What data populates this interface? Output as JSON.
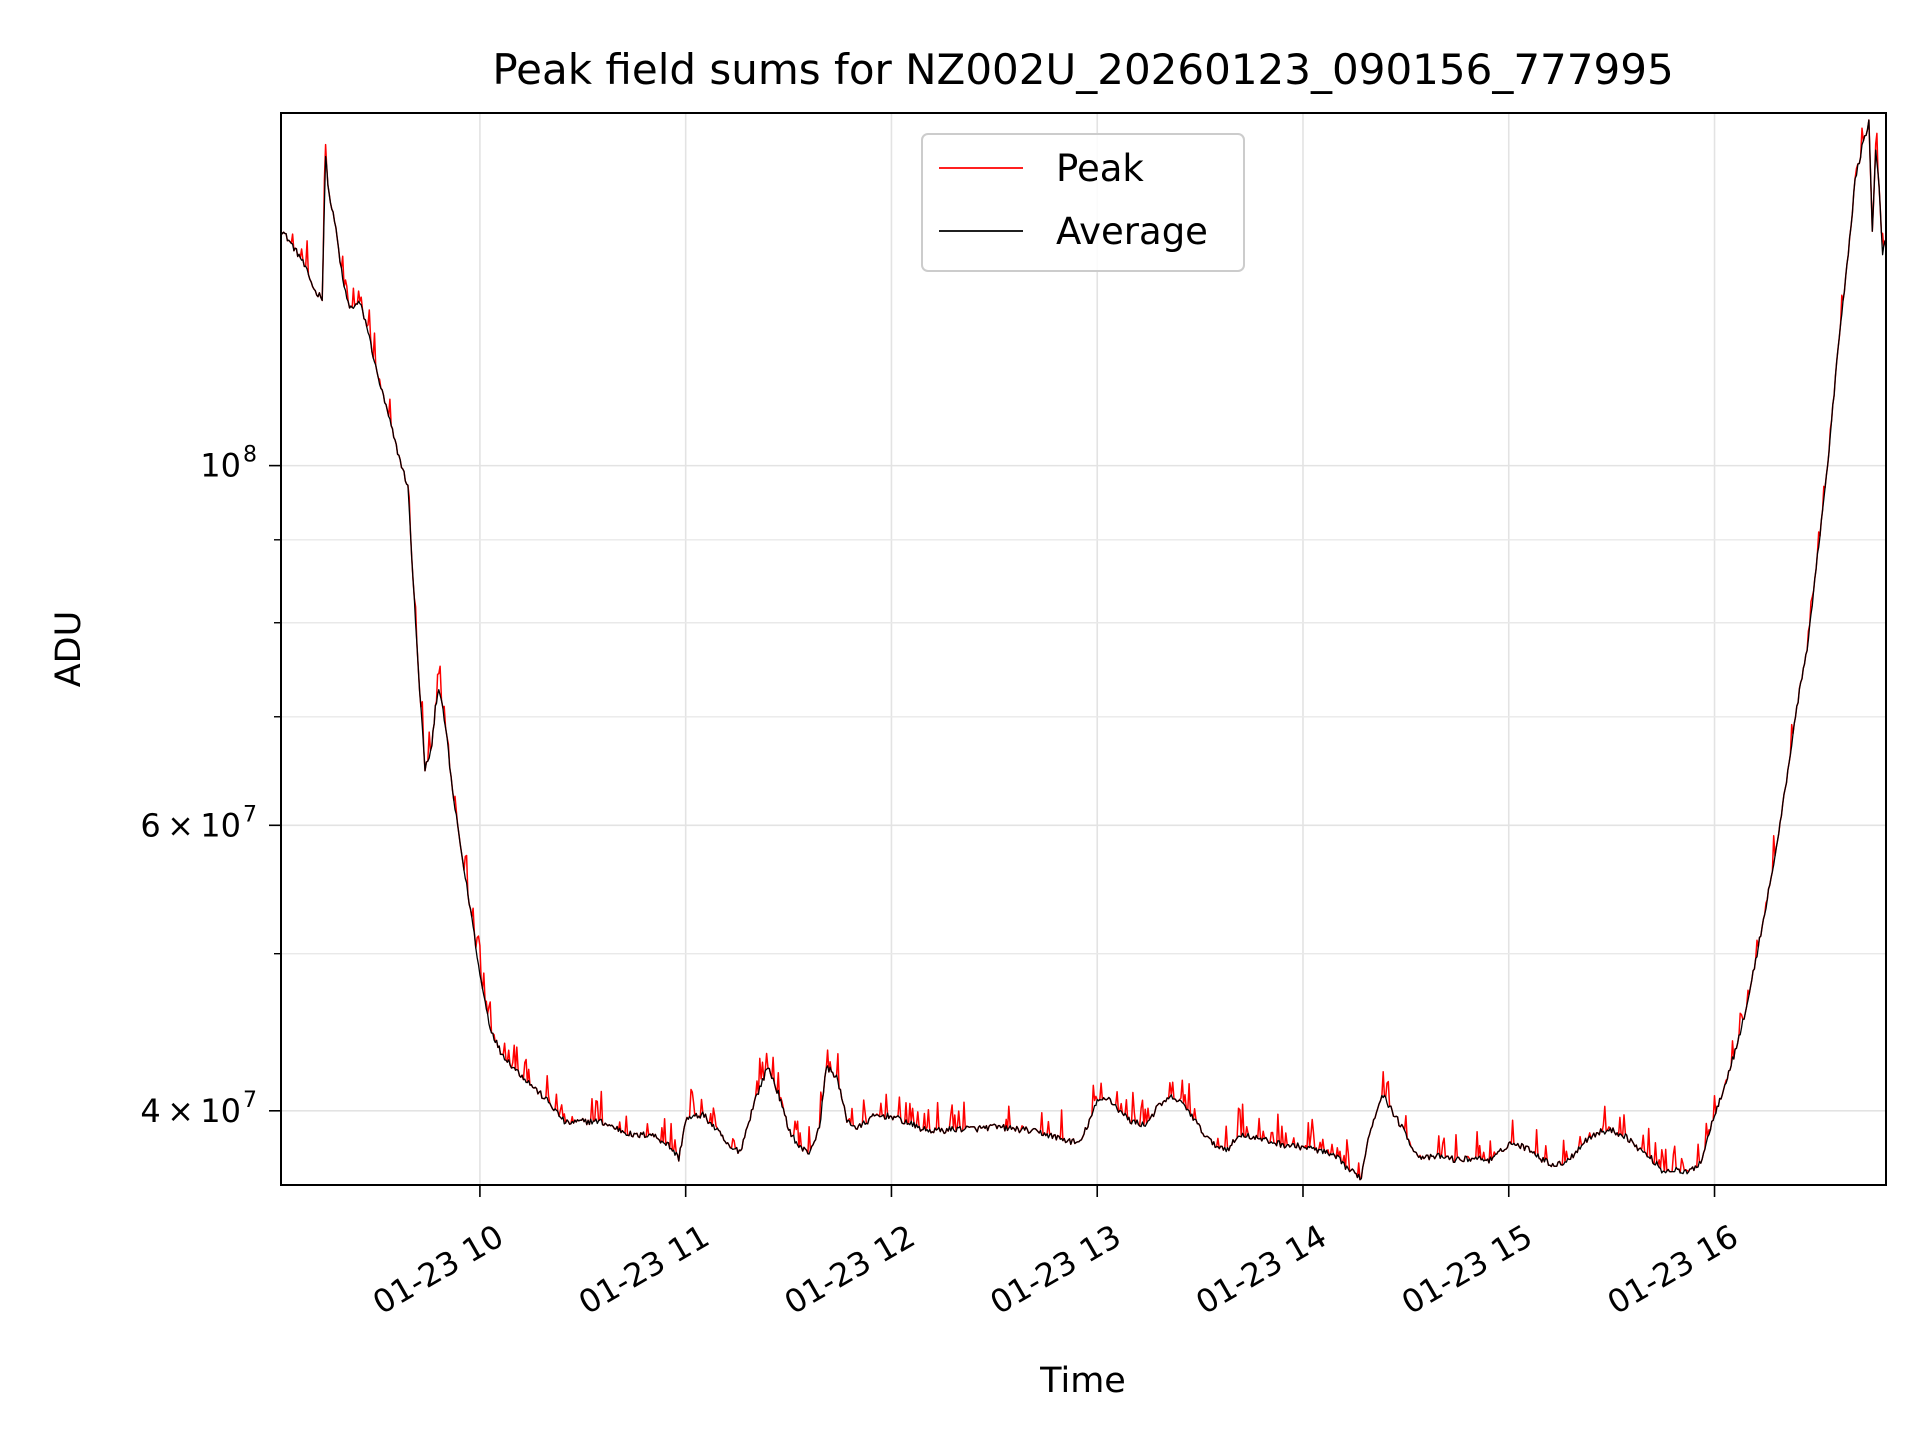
{
  "chart_data": {
    "type": "line",
    "title": "Peak field sums for NZ002U_20260123_090156_777995",
    "xlabel": "Time",
    "ylabel": "ADU",
    "y_scale": "log",
    "grid": true,
    "legend_position": "upper center",
    "x_range": [
      "01-23 09:02",
      "01-23 16:50"
    ],
    "y_range": [
      36000000,
      165000000
    ],
    "x_tick_labels": [
      "01-23 10",
      "01-23 11",
      "01-23 12",
      "01-23 13",
      "01-23 14",
      "01-23 15",
      "01-23 16"
    ],
    "y_tick_labels": [
      {
        "value": 100000000,
        "base": "10",
        "exp": "8"
      },
      {
        "value": 60000000,
        "base": "6 × 10",
        "exp": "7"
      },
      {
        "value": 40000000,
        "base": "4 × 10",
        "exp": "7"
      }
    ],
    "y_minor_ticks": [
      50000000,
      70000000,
      80000000,
      90000000
    ],
    "series": [
      {
        "name": "Peak",
        "color": "#ff0000",
        "spiky": true,
        "points": [
          [
            "09:02",
            140000000
          ],
          [
            "09:05",
            137000000
          ],
          [
            "09:08",
            134000000
          ],
          [
            "09:10",
            131000000
          ],
          [
            "09:12",
            128000000
          ],
          [
            "09:14",
            127000000
          ],
          [
            "09:15",
            155000000
          ],
          [
            "09:16",
            147000000
          ],
          [
            "09:18",
            140000000
          ],
          [
            "09:20",
            130000000
          ],
          [
            "09:22",
            125000000
          ],
          [
            "09:25",
            126000000
          ],
          [
            "09:27",
            122000000
          ],
          [
            "09:30",
            114000000
          ],
          [
            "09:33",
            108000000
          ],
          [
            "09:36",
            102000000
          ],
          [
            "09:39",
            97000000
          ],
          [
            "09:42",
            75000000
          ],
          [
            "09:44",
            65000000
          ],
          [
            "09:46",
            67000000
          ],
          [
            "09:47",
            71000000
          ],
          [
            "09:48",
            73000000
          ],
          [
            "09:50",
            69000000
          ],
          [
            "09:52",
            63000000
          ],
          [
            "09:55",
            57000000
          ],
          [
            "09:58",
            52000000
          ],
          [
            "10:00",
            48500000
          ],
          [
            "10:03",
            45000000
          ],
          [
            "10:06",
            43500000
          ],
          [
            "10:10",
            42500000
          ],
          [
            "10:15",
            41500000
          ],
          [
            "10:20",
            40500000
          ],
          [
            "10:25",
            39300000
          ],
          [
            "10:30",
            39400000
          ],
          [
            "10:35",
            39400000
          ],
          [
            "10:40",
            39000000
          ],
          [
            "10:45",
            38600000
          ],
          [
            "10:50",
            38700000
          ],
          [
            "10:55",
            38100000
          ],
          [
            "10:58",
            37400000
          ],
          [
            "11:00",
            39500000
          ],
          [
            "11:05",
            39800000
          ],
          [
            "11:10",
            38700000
          ],
          [
            "11:13",
            37900000
          ],
          [
            "11:16",
            37800000
          ],
          [
            "11:20",
            40500000
          ],
          [
            "11:24",
            42600000
          ],
          [
            "11:27",
            41000000
          ],
          [
            "11:30",
            39000000
          ],
          [
            "11:33",
            38000000
          ],
          [
            "11:36",
            37700000
          ],
          [
            "11:39",
            39000000
          ],
          [
            "11:41",
            42600000
          ],
          [
            "11:44",
            42000000
          ],
          [
            "11:47",
            39500000
          ],
          [
            "11:50",
            39000000
          ],
          [
            "11:55",
            39700000
          ],
          [
            "12:00",
            39700000
          ],
          [
            "12:05",
            39300000
          ],
          [
            "12:10",
            38900000
          ],
          [
            "12:15",
            38900000
          ],
          [
            "12:20",
            39000000
          ],
          [
            "12:25",
            39000000
          ],
          [
            "12:30",
            39100000
          ],
          [
            "12:35",
            39000000
          ],
          [
            "12:40",
            38900000
          ],
          [
            "12:45",
            38700000
          ],
          [
            "12:50",
            38400000
          ],
          [
            "12:55",
            38200000
          ],
          [
            "13:00",
            40500000
          ],
          [
            "13:03",
            40800000
          ],
          [
            "13:07",
            39900000
          ],
          [
            "13:10",
            39400000
          ],
          [
            "13:14",
            39200000
          ],
          [
            "13:18",
            40300000
          ],
          [
            "13:22",
            40800000
          ],
          [
            "13:26",
            40200000
          ],
          [
            "13:30",
            39000000
          ],
          [
            "13:34",
            38100000
          ],
          [
            "13:38",
            37900000
          ],
          [
            "13:42",
            38700000
          ],
          [
            "13:46",
            38500000
          ],
          [
            "13:50",
            38300000
          ],
          [
            "13:55",
            38100000
          ],
          [
            "14:00",
            38000000
          ],
          [
            "14:05",
            37800000
          ],
          [
            "14:10",
            37400000
          ],
          [
            "14:14",
            36700000
          ],
          [
            "14:17",
            36400000
          ],
          [
            "14:19",
            38500000
          ],
          [
            "14:23",
            41000000
          ],
          [
            "14:26",
            40000000
          ],
          [
            "14:30",
            38700000
          ],
          [
            "14:33",
            37600000
          ],
          [
            "14:36",
            37400000
          ],
          [
            "14:40",
            37500000
          ],
          [
            "14:45",
            37300000
          ],
          [
            "14:50",
            37400000
          ],
          [
            "14:55",
            37300000
          ],
          [
            "14:58",
            37800000
          ],
          [
            "15:00",
            38200000
          ],
          [
            "15:03",
            38100000
          ],
          [
            "15:07",
            37800000
          ],
          [
            "15:10",
            37300000
          ],
          [
            "15:14",
            37000000
          ],
          [
            "15:18",
            37400000
          ],
          [
            "15:22",
            38300000
          ],
          [
            "15:26",
            38800000
          ],
          [
            "15:30",
            38900000
          ],
          [
            "15:34",
            38600000
          ],
          [
            "15:38",
            37900000
          ],
          [
            "15:42",
            37300000
          ],
          [
            "15:45",
            36700000
          ],
          [
            "15:48",
            36800000
          ],
          [
            "15:52",
            36600000
          ],
          [
            "15:56",
            37200000
          ],
          [
            "16:00",
            39800000
          ],
          [
            "16:03",
            41500000
          ],
          [
            "16:06",
            43500000
          ],
          [
            "16:09",
            46000000
          ],
          [
            "16:12",
            49500000
          ],
          [
            "16:15",
            53500000
          ],
          [
            "16:18",
            58000000
          ],
          [
            "16:21",
            64000000
          ],
          [
            "16:24",
            71000000
          ],
          [
            "16:27",
            77000000
          ],
          [
            "16:30",
            88000000
          ],
          [
            "16:33",
            100000000
          ],
          [
            "16:36",
            118000000
          ],
          [
            "16:39",
            135000000
          ],
          [
            "16:41",
            150000000
          ],
          [
            "16:43",
            157000000
          ],
          [
            "16:45",
            163000000
          ],
          [
            "16:46",
            140000000
          ],
          [
            "16:47",
            156000000
          ],
          [
            "16:48",
            149000000
          ],
          [
            "16:49",
            135000000
          ],
          [
            "16:50",
            138000000
          ]
        ]
      },
      {
        "name": "Average",
        "color": "#000000",
        "spiky": false,
        "points": [
          [
            "09:02",
            140000000
          ],
          [
            "09:05",
            137000000
          ],
          [
            "09:08",
            134000000
          ],
          [
            "09:10",
            131000000
          ],
          [
            "09:12",
            128000000
          ],
          [
            "09:14",
            127000000
          ],
          [
            "09:15",
            155000000
          ],
          [
            "09:16",
            147000000
          ],
          [
            "09:18",
            140000000
          ],
          [
            "09:20",
            130000000
          ],
          [
            "09:22",
            125000000
          ],
          [
            "09:25",
            126000000
          ],
          [
            "09:27",
            122000000
          ],
          [
            "09:30",
            114000000
          ],
          [
            "09:33",
            108000000
          ],
          [
            "09:36",
            102000000
          ],
          [
            "09:39",
            97000000
          ],
          [
            "09:42",
            75000000
          ],
          [
            "09:44",
            65000000
          ],
          [
            "09:46",
            67000000
          ],
          [
            "09:47",
            71000000
          ],
          [
            "09:48",
            73000000
          ],
          [
            "09:50",
            69000000
          ],
          [
            "09:52",
            63000000
          ],
          [
            "09:55",
            57000000
          ],
          [
            "09:58",
            52000000
          ],
          [
            "10:00",
            48500000
          ],
          [
            "10:03",
            45000000
          ],
          [
            "10:06",
            43500000
          ],
          [
            "10:10",
            42500000
          ],
          [
            "10:15",
            41500000
          ],
          [
            "10:20",
            40500000
          ],
          [
            "10:25",
            39300000
          ],
          [
            "10:30",
            39400000
          ],
          [
            "10:35",
            39400000
          ],
          [
            "10:40",
            39000000
          ],
          [
            "10:45",
            38600000
          ],
          [
            "10:50",
            38700000
          ],
          [
            "10:55",
            38100000
          ],
          [
            "10:58",
            37400000
          ],
          [
            "11:00",
            39500000
          ],
          [
            "11:05",
            39800000
          ],
          [
            "11:10",
            38700000
          ],
          [
            "11:13",
            37900000
          ],
          [
            "11:16",
            37800000
          ],
          [
            "11:20",
            40500000
          ],
          [
            "11:24",
            42600000
          ],
          [
            "11:27",
            41000000
          ],
          [
            "11:30",
            39000000
          ],
          [
            "11:33",
            38000000
          ],
          [
            "11:36",
            37700000
          ],
          [
            "11:39",
            39000000
          ],
          [
            "11:41",
            42600000
          ],
          [
            "11:44",
            42000000
          ],
          [
            "11:47",
            39500000
          ],
          [
            "11:50",
            39000000
          ],
          [
            "11:55",
            39700000
          ],
          [
            "12:00",
            39700000
          ],
          [
            "12:05",
            39300000
          ],
          [
            "12:10",
            38900000
          ],
          [
            "12:15",
            38900000
          ],
          [
            "12:20",
            39000000
          ],
          [
            "12:25",
            39000000
          ],
          [
            "12:30",
            39100000
          ],
          [
            "12:35",
            39000000
          ],
          [
            "12:40",
            38900000
          ],
          [
            "12:45",
            38700000
          ],
          [
            "12:50",
            38400000
          ],
          [
            "12:55",
            38200000
          ],
          [
            "13:00",
            40500000
          ],
          [
            "13:03",
            40800000
          ],
          [
            "13:07",
            39900000
          ],
          [
            "13:10",
            39400000
          ],
          [
            "13:14",
            39200000
          ],
          [
            "13:18",
            40300000
          ],
          [
            "13:22",
            40800000
          ],
          [
            "13:26",
            40200000
          ],
          [
            "13:30",
            39000000
          ],
          [
            "13:34",
            38100000
          ],
          [
            "13:38",
            37900000
          ],
          [
            "13:42",
            38700000
          ],
          [
            "13:46",
            38500000
          ],
          [
            "13:50",
            38300000
          ],
          [
            "13:55",
            38100000
          ],
          [
            "14:00",
            38000000
          ],
          [
            "14:05",
            37800000
          ],
          [
            "14:10",
            37400000
          ],
          [
            "14:14",
            36700000
          ],
          [
            "14:17",
            36400000
          ],
          [
            "14:19",
            38500000
          ],
          [
            "14:23",
            41000000
          ],
          [
            "14:26",
            40000000
          ],
          [
            "14:30",
            38700000
          ],
          [
            "14:33",
            37600000
          ],
          [
            "14:36",
            37400000
          ],
          [
            "14:40",
            37500000
          ],
          [
            "14:45",
            37300000
          ],
          [
            "14:50",
            37400000
          ],
          [
            "14:55",
            37300000
          ],
          [
            "14:58",
            37800000
          ],
          [
            "15:00",
            38200000
          ],
          [
            "15:03",
            38100000
          ],
          [
            "15:07",
            37800000
          ],
          [
            "15:10",
            37300000
          ],
          [
            "15:14",
            37000000
          ],
          [
            "15:18",
            37400000
          ],
          [
            "15:22",
            38300000
          ],
          [
            "15:26",
            38800000
          ],
          [
            "15:30",
            38900000
          ],
          [
            "15:34",
            38600000
          ],
          [
            "15:38",
            37900000
          ],
          [
            "15:42",
            37300000
          ],
          [
            "15:45",
            36700000
          ],
          [
            "15:48",
            36800000
          ],
          [
            "15:52",
            36600000
          ],
          [
            "15:56",
            37200000
          ],
          [
            "16:00",
            39800000
          ],
          [
            "16:03",
            41500000
          ],
          [
            "16:06",
            43500000
          ],
          [
            "16:09",
            46000000
          ],
          [
            "16:12",
            49500000
          ],
          [
            "16:15",
            53500000
          ],
          [
            "16:18",
            58000000
          ],
          [
            "16:21",
            64000000
          ],
          [
            "16:24",
            71000000
          ],
          [
            "16:27",
            77000000
          ],
          [
            "16:30",
            88000000
          ],
          [
            "16:33",
            100000000
          ],
          [
            "16:36",
            118000000
          ],
          [
            "16:39",
            135000000
          ],
          [
            "16:41",
            150000000
          ],
          [
            "16:43",
            157000000
          ],
          [
            "16:45",
            163000000
          ],
          [
            "16:46",
            140000000
          ],
          [
            "16:47",
            156000000
          ],
          [
            "16:48",
            149000000
          ],
          [
            "16:49",
            135000000
          ],
          [
            "16:50",
            138000000
          ]
        ]
      }
    ]
  }
}
